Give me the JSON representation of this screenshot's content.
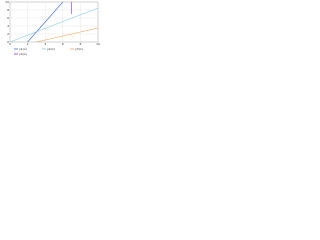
{
  "chart_data": {
    "type": "line",
    "xlim": [
      0,
      10
    ],
    "ylim": [
      0,
      10
    ],
    "xticks": [
      0,
      2,
      4,
      6,
      8,
      10
    ],
    "yticks": [
      0,
      2,
      4,
      6,
      8,
      10
    ],
    "grid": true,
    "series": [
      {
        "name": "y1(x)",
        "color": "#3a6fd8",
        "x": [
          2,
          6
        ],
        "values": [
          0,
          10
        ]
      },
      {
        "name": "y2(x)",
        "color": "#7ec8e8",
        "x": [
          0,
          10
        ],
        "values": [
          0,
          8.5
        ]
      },
      {
        "name": "y3(x)",
        "color": "#f0a050",
        "x": [
          3,
          10
        ],
        "values": [
          0,
          3.5
        ]
      },
      {
        "name": "y4(x)",
        "color": "#7a3ad0",
        "x": [
          7,
          7
        ],
        "values": [
          7,
          10
        ]
      }
    ]
  }
}
